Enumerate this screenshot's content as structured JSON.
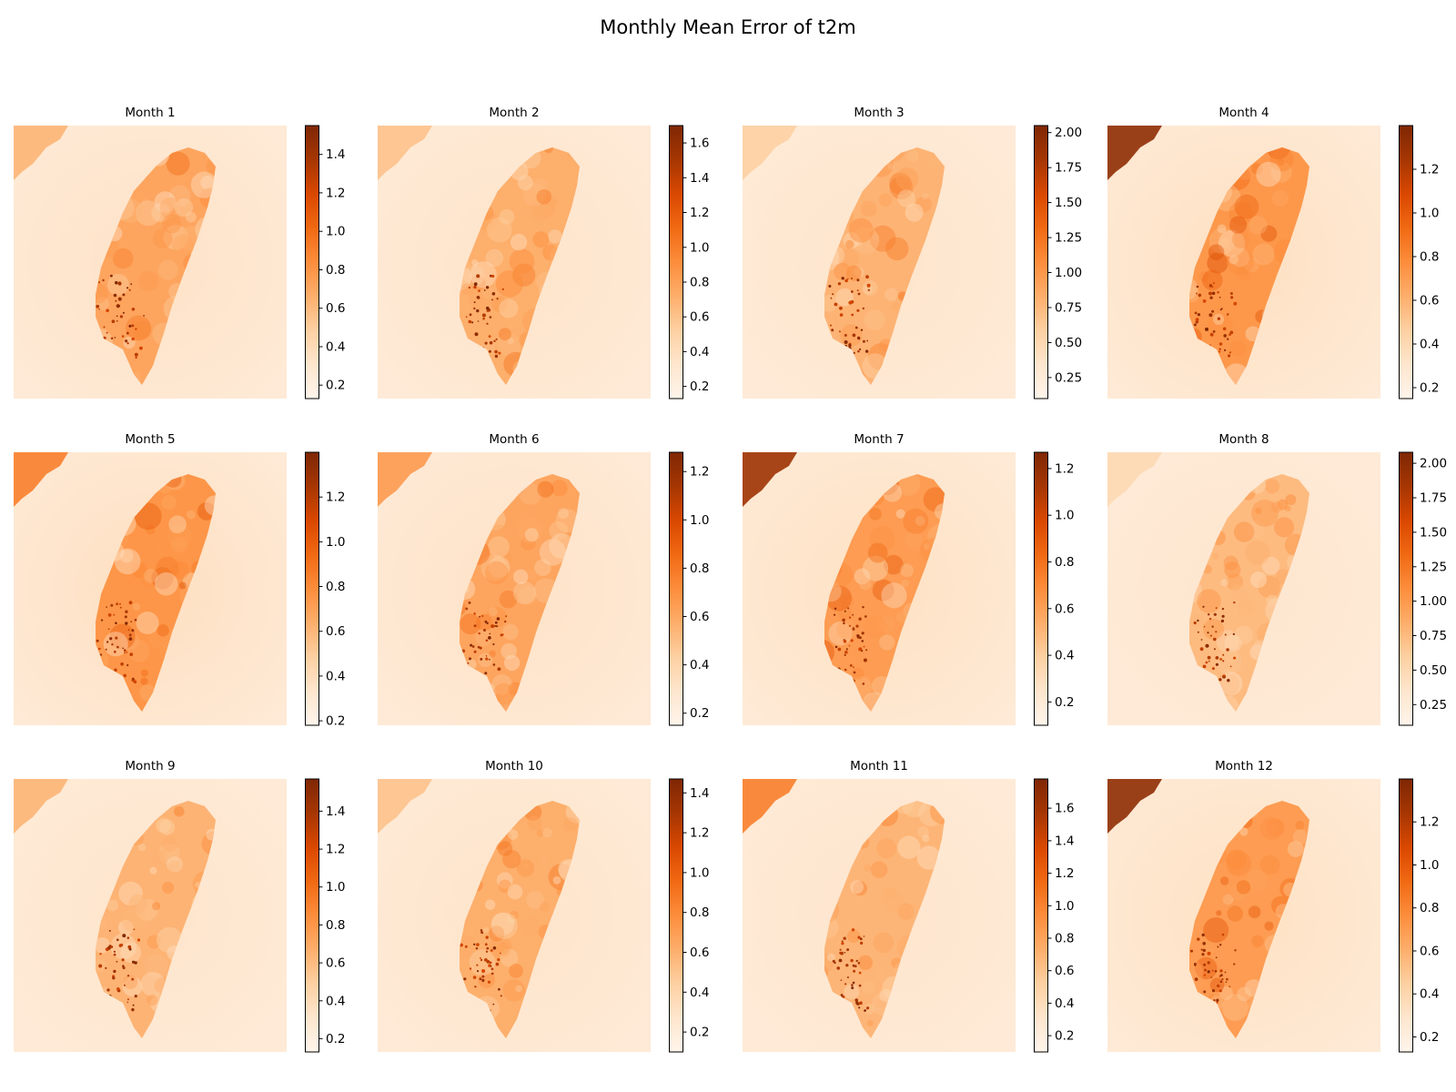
{
  "title": "Monthly Mean Error of t2m",
  "colors": {
    "colormap": "Oranges",
    "stops": [
      "#fff5eb",
      "#fee6ce",
      "#fdd0a2",
      "#fdae6b",
      "#fd8d3c",
      "#f16913",
      "#d94801",
      "#a63603",
      "#7f2704"
    ]
  },
  "chart_data": [
    {
      "type": "heatmap",
      "title": "Month 1",
      "colorbar": {
        "range": [
          0.13,
          1.55
        ],
        "ticks": [
          "0.2",
          "0.4",
          "0.6",
          "0.8",
          "1.0",
          "1.2",
          "1.4"
        ]
      }
    },
    {
      "type": "heatmap",
      "title": "Month 2",
      "colorbar": {
        "range": [
          0.13,
          1.7
        ],
        "ticks": [
          "0.2",
          "0.4",
          "0.6",
          "0.8",
          "1.0",
          "1.2",
          "1.4",
          "1.6"
        ]
      }
    },
    {
      "type": "heatmap",
      "title": "Month 3",
      "colorbar": {
        "range": [
          0.1,
          2.05
        ],
        "ticks": [
          "0.25",
          "0.50",
          "0.75",
          "1.00",
          "1.25",
          "1.50",
          "1.75",
          "2.00"
        ]
      }
    },
    {
      "type": "heatmap",
      "title": "Month 4",
      "colorbar": {
        "range": [
          0.15,
          1.4
        ],
        "ticks": [
          "0.2",
          "0.4",
          "0.6",
          "0.8",
          "1.0",
          "1.2"
        ]
      }
    },
    {
      "type": "heatmap",
      "title": "Month 5",
      "colorbar": {
        "range": [
          0.18,
          1.4
        ],
        "ticks": [
          "0.2",
          "0.4",
          "0.6",
          "0.8",
          "1.0",
          "1.2"
        ]
      }
    },
    {
      "type": "heatmap",
      "title": "Month 6",
      "colorbar": {
        "range": [
          0.15,
          1.28
        ],
        "ticks": [
          "0.2",
          "0.4",
          "0.6",
          "0.8",
          "1.0",
          "1.2"
        ]
      }
    },
    {
      "type": "heatmap",
      "title": "Month 7",
      "colorbar": {
        "range": [
          0.1,
          1.27
        ],
        "ticks": [
          "0.2",
          "0.4",
          "0.6",
          "0.8",
          "1.0",
          "1.2"
        ]
      }
    },
    {
      "type": "heatmap",
      "title": "Month 8",
      "colorbar": {
        "range": [
          0.1,
          2.08
        ],
        "ticks": [
          "0.25",
          "0.50",
          "0.75",
          "1.00",
          "1.25",
          "1.50",
          "1.75",
          "2.00"
        ]
      }
    },
    {
      "type": "heatmap",
      "title": "Month 9",
      "colorbar": {
        "range": [
          0.13,
          1.57
        ],
        "ticks": [
          "0.2",
          "0.4",
          "0.6",
          "0.8",
          "1.0",
          "1.2",
          "1.4"
        ]
      }
    },
    {
      "type": "heatmap",
      "title": "Month 10",
      "colorbar": {
        "range": [
          0.1,
          1.47
        ],
        "ticks": [
          "0.2",
          "0.4",
          "0.6",
          "0.8",
          "1.0",
          "1.2",
          "1.4"
        ]
      }
    },
    {
      "type": "heatmap",
      "title": "Month 11",
      "colorbar": {
        "range": [
          0.1,
          1.78
        ],
        "ticks": [
          "0.2",
          "0.4",
          "0.6",
          "0.8",
          "1.0",
          "1.2",
          "1.4",
          "1.6"
        ]
      }
    },
    {
      "type": "heatmap",
      "title": "Month 12",
      "colorbar": {
        "range": [
          0.13,
          1.4
        ],
        "ticks": [
          "0.2",
          "0.4",
          "0.6",
          "0.8",
          "1.0",
          "1.2"
        ]
      }
    }
  ]
}
